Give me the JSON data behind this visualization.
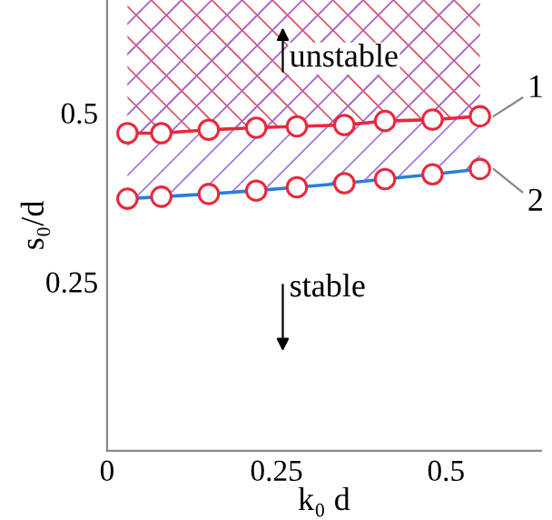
{
  "chart_data": {
    "type": "line",
    "xlabel": "k₀ d",
    "ylabel": "s₀/d",
    "x": [
      0.03,
      0.08,
      0.15,
      0.22,
      0.28,
      0.35,
      0.41,
      0.48,
      0.55
    ],
    "series": [
      {
        "name": "1",
        "color": "#e8283c",
        "colors": [
          "#e8283c",
          "#e8283c",
          "#e8283c",
          "#e8283c",
          "#e8283c",
          "#e8283c",
          "#e8283c",
          "#e8283c",
          "#e8283c"
        ],
        "values": [
          0.47,
          0.47,
          0.475,
          0.478,
          0.48,
          0.482,
          0.488,
          0.49,
          0.495
        ]
      },
      {
        "name": "2",
        "color": "#2a7fd8",
        "colors": [
          "#e8283c",
          "#e8283c",
          "#e8283c",
          "#e8283c",
          "#e8283c",
          "#e8283c",
          "#e8283c",
          "#e8283c",
          "#e8283c"
        ],
        "values": [
          0.373,
          0.376,
          0.38,
          0.385,
          0.39,
          0.396,
          0.402,
          0.409,
          0.417
        ]
      }
    ],
    "annotations": [
      "unstable",
      "stable"
    ],
    "marker": "circle",
    "xlim": [
      0,
      0.64
    ],
    "ylim": [
      0,
      0.667
    ],
    "xticks": [
      0,
      0.25,
      0.5
    ],
    "yticks": [
      0.25,
      0.5
    ],
    "grid": false,
    "legend": false
  }
}
